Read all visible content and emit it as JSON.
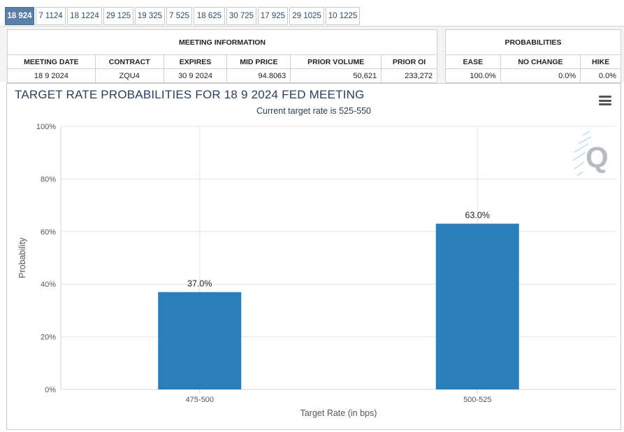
{
  "tabs": [
    "18 924",
    "7 1124",
    "18 1224",
    "29 125",
    "19 325",
    "7 525",
    "18 625",
    "30 725",
    "17 925",
    "29 1025",
    "10 1225"
  ],
  "active_tab": 0,
  "meeting_info": {
    "header": "MEETING INFORMATION",
    "columns": [
      "MEETING DATE",
      "CONTRACT",
      "EXPIRES",
      "MID PRICE",
      "PRIOR VOLUME",
      "PRIOR OI"
    ],
    "values": [
      "18 9 2024",
      "ZQU4",
      "30 9 2024",
      "94.8063",
      "50,621",
      "233,272"
    ]
  },
  "probabilities": {
    "header": "PROBABILITIES",
    "columns": [
      "EASE",
      "NO CHANGE",
      "HIKE"
    ],
    "values": [
      "100.0%",
      "0.0%",
      "0.0%"
    ]
  },
  "chart": {
    "title": "TARGET RATE PROBABILITIES FOR 18 9 2024 FED MEETING",
    "subtitle": "Current target rate is 525-550",
    "menu_icon": "hamburger-menu-icon",
    "watermark_icon": "q-logo-icon"
  },
  "chart_data": {
    "type": "bar",
    "title": "TARGET RATE PROBABILITIES FOR 18 9 2024 FED MEETING",
    "subtitle": "Current target rate is 525-550",
    "categories": [
      "475-500",
      "500-525"
    ],
    "values": [
      37.0,
      63.0
    ],
    "data_labels": [
      "37.0%",
      "63.0%"
    ],
    "xlabel": "Target Rate (in bps)",
    "ylabel": "Probability",
    "ylim": [
      0,
      100
    ],
    "yticks": [
      0,
      20,
      40,
      60,
      80,
      100
    ],
    "ytick_labels": [
      "0%",
      "20%",
      "40%",
      "60%",
      "80%",
      "100%"
    ],
    "grid": true,
    "legend": "none",
    "bar_color": "#2a7fba"
  }
}
